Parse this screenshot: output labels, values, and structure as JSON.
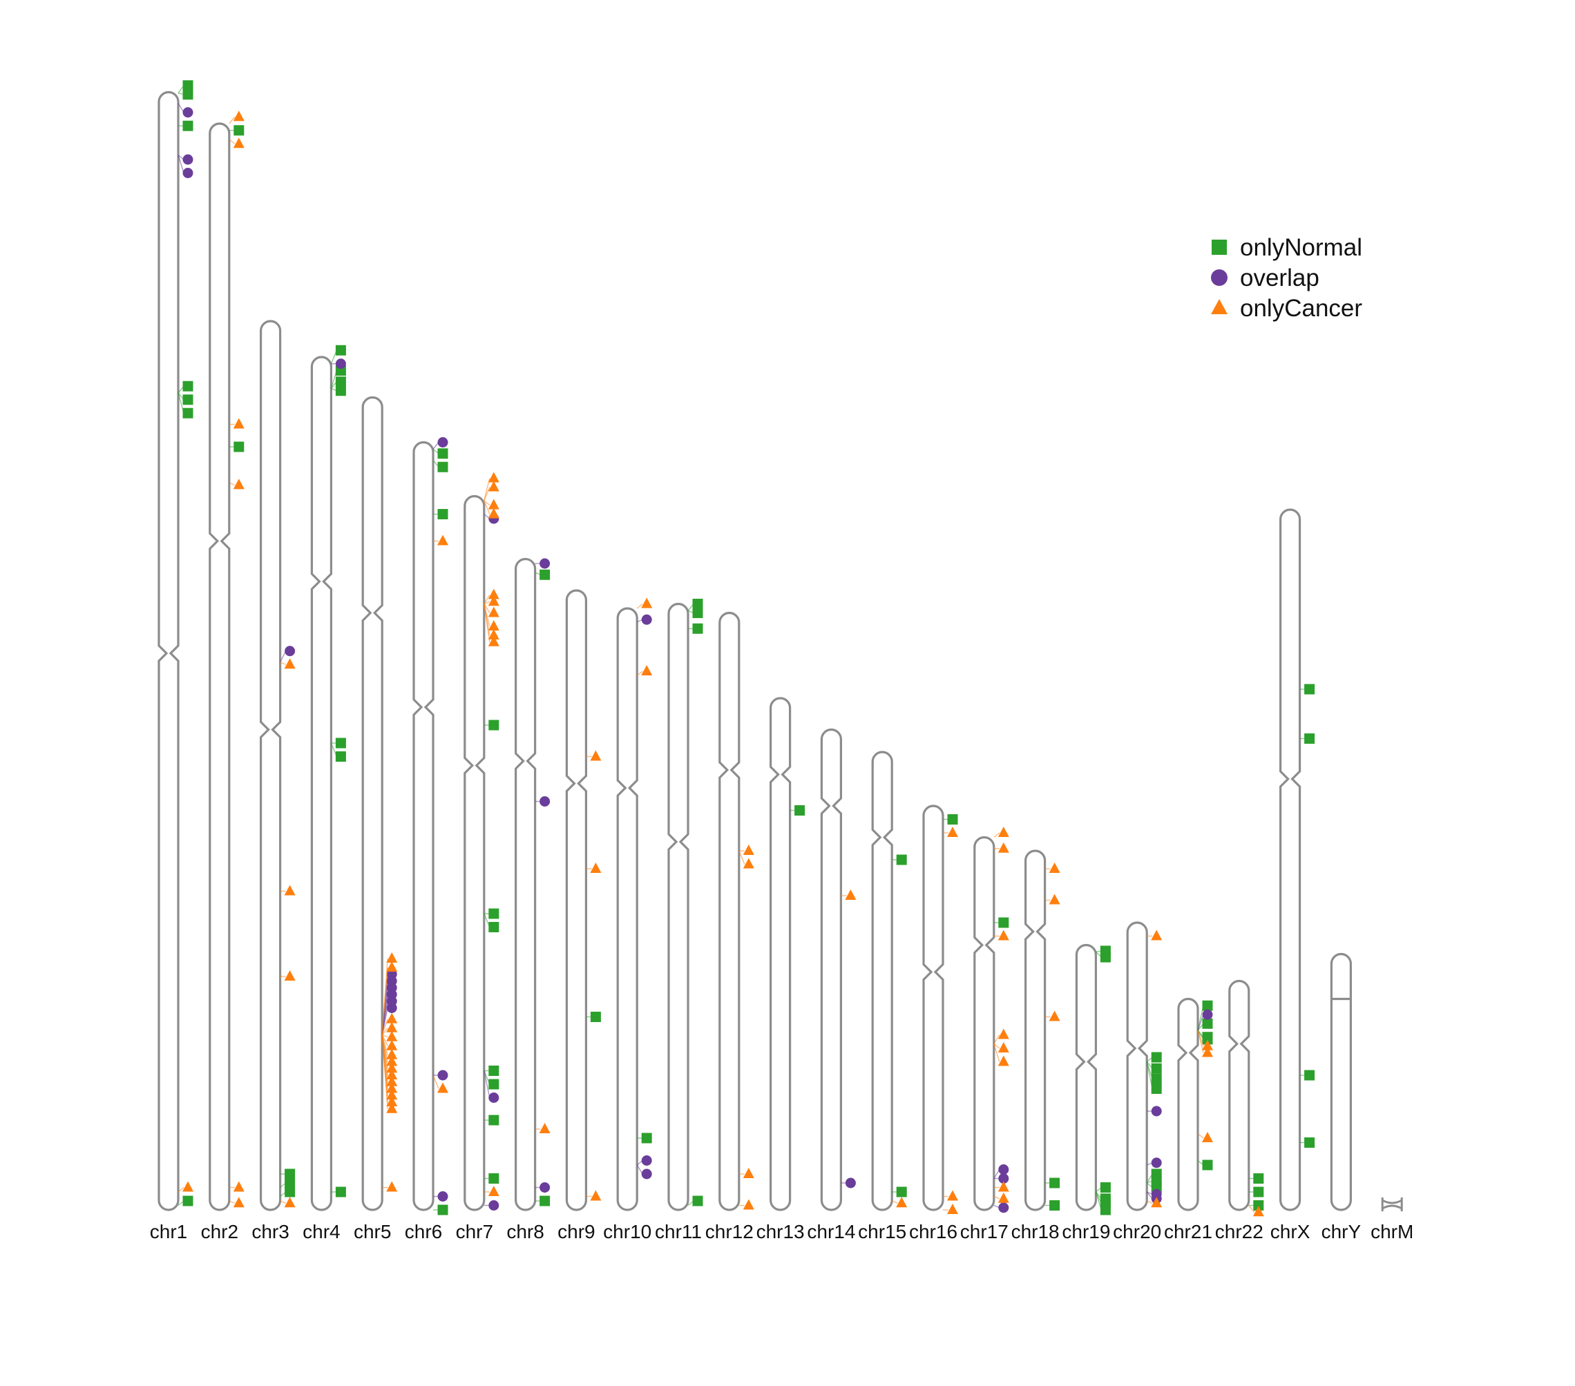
{
  "colors": {
    "onlyNormal": "#2ca02c",
    "overlap": "#6a3d9a",
    "onlyCancer": "#ff7f0e",
    "outline": "#8c8c8c"
  },
  "legend": [
    {
      "key": "onlyNormal",
      "label": "onlyNormal",
      "shape": "square"
    },
    {
      "key": "overlap",
      "label": "overlap",
      "shape": "circle"
    },
    {
      "key": "onlyCancer",
      "label": "onlyCancer",
      "shape": "triangle"
    }
  ],
  "chart_data": {
    "type": "ideogram",
    "length_unit": "Mb",
    "chromosomes": [
      {
        "name": "chr1",
        "length": 249,
        "centromere": 125
      },
      {
        "name": "chr2",
        "length": 242,
        "centromere": 93
      },
      {
        "name": "chr3",
        "length": 198,
        "centromere": 91
      },
      {
        "name": "chr4",
        "length": 190,
        "centromere": 50
      },
      {
        "name": "chr5",
        "length": 181,
        "centromere": 48
      },
      {
        "name": "chr6",
        "length": 171,
        "centromere": 59
      },
      {
        "name": "chr7",
        "length": 159,
        "centromere": 60
      },
      {
        "name": "chr8",
        "length": 145,
        "centromere": 45
      },
      {
        "name": "chr9",
        "length": 138,
        "centromere": 43
      },
      {
        "name": "chr10",
        "length": 134,
        "centromere": 40
      },
      {
        "name": "chr11",
        "length": 135,
        "centromere": 53
      },
      {
        "name": "chr12",
        "length": 133,
        "centromere": 35
      },
      {
        "name": "chr13",
        "length": 114,
        "centromere": 17
      },
      {
        "name": "chr14",
        "length": 107,
        "centromere": 17
      },
      {
        "name": "chr15",
        "length": 102,
        "centromere": 19
      },
      {
        "name": "chr16",
        "length": 90,
        "centromere": 37
      },
      {
        "name": "chr17",
        "length": 83,
        "centromere": 24
      },
      {
        "name": "chr18",
        "length": 80,
        "centromere": 18
      },
      {
        "name": "chr19",
        "length": 59,
        "centromere": 26
      },
      {
        "name": "chr20",
        "length": 64,
        "centromere": 28
      },
      {
        "name": "chr21",
        "length": 47,
        "centromere": 12
      },
      {
        "name": "chr22",
        "length": 51,
        "centromere": 14
      },
      {
        "name": "chrX",
        "length": 156,
        "centromere": 60
      },
      {
        "name": "chrY",
        "length": 57,
        "centromere": 10
      },
      {
        "name": "chrM",
        "length": 0.016,
        "centromere": null
      }
    ],
    "markers": {
      "chr1": {
        "onlyNormal": [
          [
            0.2,
            -1.5
          ],
          [
            0.2,
            0.5
          ],
          [
            7.5,
            7.5
          ],
          [
            67,
            65.5
          ],
          [
            67,
            68.5
          ],
          [
            67,
            71.5
          ],
          [
            248,
            247
          ]
        ],
        "overlap": [
          [
            2.5,
            4.5
          ],
          [
            14,
            15
          ],
          [
            14,
            18
          ]
        ],
        "onlyCancer": [
          [
            245,
            244
          ]
        ]
      },
      "chr2": {
        "onlyNormal": [
          [
            1.5,
            1.5
          ],
          [
            72,
            72
          ]
        ],
        "onlyCancer": [
          [
            0,
            -1.5
          ],
          [
            3.5,
            4.5
          ],
          [
            67,
            67
          ],
          [
            80,
            80.5
          ],
          [
            237,
            237
          ],
          [
            240,
            240.5
          ]
        ]
      },
      "chr3": {
        "onlyNormal": [
          [
            190,
            190
          ],
          [
            193,
            192
          ],
          [
            195,
            194
          ]
        ],
        "overlap": [
          [
            76,
            73.5
          ]
        ],
        "onlyCancer": [
          [
            76,
            76.5
          ],
          [
            127,
            127
          ],
          [
            146,
            146
          ],
          [
            196,
            196.5
          ]
        ]
      },
      "chr4": {
        "onlyNormal": [
          [
            1.5,
            -1.5
          ],
          [
            7,
            3
          ],
          [
            7,
            5.5
          ],
          [
            7,
            7.5
          ],
          [
            86,
            86
          ],
          [
            86,
            89
          ],
          [
            186,
            186
          ]
        ],
        "overlap": [
          [
            1.5,
            1.5
          ]
        ]
      },
      "chr5": {
        "overlap": [
          [
            142,
            128.5
          ],
          [
            142,
            130
          ],
          [
            142,
            131.5
          ],
          [
            142,
            133
          ],
          [
            142,
            134.5
          ],
          [
            142,
            136
          ]
        ],
        "onlyCancer": [
          [
            142,
            125
          ],
          [
            142,
            127
          ],
          [
            142,
            138.5
          ],
          [
            142,
            140.5
          ],
          [
            142,
            142.5
          ],
          [
            142,
            144.5
          ],
          [
            142,
            146.5
          ],
          [
            142,
            148
          ],
          [
            142,
            149.5
          ],
          [
            142,
            151
          ],
          [
            142,
            152.5
          ],
          [
            142,
            154
          ],
          [
            142,
            155.5
          ],
          [
            142,
            157
          ],
          [
            142,
            158.5
          ],
          [
            176,
            176
          ]
        ]
      },
      "chr6": {
        "onlyNormal": [
          [
            1.5,
            2.5
          ],
          [
            4,
            5.5
          ],
          [
            16,
            16
          ],
          [
            171,
            171
          ]
        ],
        "overlap": [
          [
            1.5,
            0
          ],
          [
            141,
            141
          ],
          [
            168,
            168
          ]
        ],
        "onlyCancer": [
          [
            22,
            22
          ],
          [
            141,
            144
          ]
        ]
      },
      "chr7": {
        "onlyNormal": [
          [
            51,
            51
          ],
          [
            93,
            93
          ],
          [
            93,
            96
          ],
          [
            128,
            128
          ],
          [
            128,
            131
          ],
          [
            139,
            139
          ],
          [
            152,
            152
          ]
        ],
        "overlap": [
          [
            4,
            5
          ],
          [
            128,
            134
          ]
        ],
        "onlyCancer": [
          [
            1,
            -4
          ],
          [
            1,
            -2
          ],
          [
            1,
            2
          ],
          [
            1,
            4
          ],
          [
            24,
            22
          ],
          [
            24,
            23.5
          ],
          [
            24,
            26
          ],
          [
            24,
            29
          ],
          [
            24,
            31
          ],
          [
            24,
            32.5
          ],
          [
            155,
            155
          ]
        ],
        "overlap_extra": [
          [
            158,
            158
          ]
        ]
      },
      "chr8": {
        "onlyNormal": [
          [
            3,
            3.5
          ],
          [
            143,
            143
          ]
        ],
        "overlap": [
          [
            1,
            1
          ],
          [
            54,
            54
          ],
          [
            140,
            140
          ]
        ],
        "onlyCancer": [
          [
            127,
            127
          ]
        ]
      },
      "chr9": {
        "onlyNormal": [
          [
            95,
            95
          ]
        ],
        "onlyCancer": [
          [
            37,
            37
          ],
          [
            62,
            62
          ],
          [
            135,
            135
          ]
        ]
      },
      "chr10": {
        "onlyNormal": [
          [
            118,
            118
          ]
        ],
        "overlap": [
          [
            3,
            2.5
          ],
          [
            124,
            123
          ],
          [
            124,
            126
          ]
        ],
        "onlyCancer": [
          [
            0,
            -1
          ],
          [
            15,
            14
          ]
        ]
      },
      "chr11": {
        "onlyNormal": [
          [
            1.5,
            0
          ],
          [
            1.5,
            2
          ],
          [
            5.5,
            5.5
          ],
          [
            134,
            133
          ]
        ]
      },
      "chr12": {
        "onlyCancer": [
          [
            53,
            53
          ],
          [
            53,
            56
          ],
          [
            125,
            125
          ],
          [
            132,
            132
          ]
        ]
      },
      "chr13": {
        "onlyNormal": [
          [
            25,
            25
          ]
        ]
      },
      "chr14": {
        "overlap": [
          [
            101,
            101
          ]
        ],
        "onlyCancer": [
          [
            37,
            37
          ]
        ]
      },
      "chr15": {
        "onlyNormal": [
          [
            24,
            24
          ],
          [
            98,
            98
          ]
        ],
        "onlyCancer": [
          [
            100,
            100.5
          ]
        ]
      },
      "chr16": {
        "onlyNormal": [
          [
            3,
            3
          ]
        ],
        "onlyCancer": [
          [
            6,
            6
          ],
          [
            87,
            87
          ],
          [
            90,
            90
          ]
        ]
      },
      "chr17": {
        "onlyNormal": [
          [
            19,
            19
          ]
        ],
        "overlap": [
          [
            76,
            74
          ],
          [
            76,
            76
          ],
          [
            82,
            82.5
          ]
        ],
        "onlyCancer": [
          [
            0,
            -1
          ],
          [
            2.5,
            2.5
          ],
          [
            22,
            22
          ],
          [
            46,
            44
          ],
          [
            46,
            47
          ],
          [
            46,
            50
          ],
          [
            78,
            78
          ],
          [
            80,
            80.5
          ]
        ]
      },
      "chr18": {
        "onlyNormal": [
          [
            74,
            74
          ],
          [
            79,
            79
          ]
        ],
        "onlyCancer": [
          [
            4,
            4
          ],
          [
            11,
            11
          ],
          [
            37,
            37
          ]
        ]
      },
      "chr19": {
        "onlyNormal": [
          [
            1.5,
            1.3
          ],
          [
            1.5,
            2.7
          ],
          [
            55,
            54
          ],
          [
            55,
            56.5
          ],
          [
            55,
            57.5
          ],
          [
            55,
            59
          ]
        ]
      },
      "chr20": {
        "onlyNormal": [
          [
            31,
            30
          ],
          [
            31,
            32.5
          ],
          [
            31,
            34.8
          ],
          [
            31,
            37
          ],
          [
            58,
            56
          ],
          [
            58,
            57.5
          ],
          [
            58,
            59
          ]
        ],
        "overlap": [
          [
            42,
            42
          ],
          [
            54,
            53.5
          ],
          [
            60,
            60.5
          ],
          [
            60,
            61.5
          ]
        ],
        "onlyCancer": [
          [
            3,
            3
          ],
          [
            62,
            62.5
          ]
        ]
      },
      "chr21": {
        "onlyNormal": [
          [
            7,
            1.5
          ],
          [
            7,
            5.5
          ],
          [
            7,
            8.5
          ],
          [
            7,
            9
          ],
          [
            36,
            37
          ]
        ],
        "overlap": [
          [
            7,
            3.5
          ]
        ],
        "onlyCancer": [
          [
            7,
            10.5
          ],
          [
            7,
            12
          ],
          [
            30,
            31
          ]
        ]
      },
      "chr22": {
        "onlyNormal": [
          [
            44,
            44
          ],
          [
            47,
            47
          ],
          [
            50,
            50
          ]
        ],
        "onlyCancer": [
          [
            50,
            51.5
          ]
        ]
      },
      "chrX": {
        "onlyNormal": [
          [
            40,
            40
          ],
          [
            51,
            51
          ],
          [
            126,
            126
          ],
          [
            141,
            141
          ]
        ]
      }
    }
  },
  "x_labels": [
    "chr1",
    "chr2",
    "chr3",
    "chr4",
    "chr5",
    "chr6",
    "chr7",
    "chr8",
    "chr9",
    "chr10",
    "chr11",
    "chr12",
    "chr13",
    "chr14",
    "chr15",
    "chr16",
    "chr17",
    "chr18",
    "chr19",
    "chr20",
    "chr21",
    "chr22",
    "chrX",
    "chrY",
    "chrM"
  ]
}
